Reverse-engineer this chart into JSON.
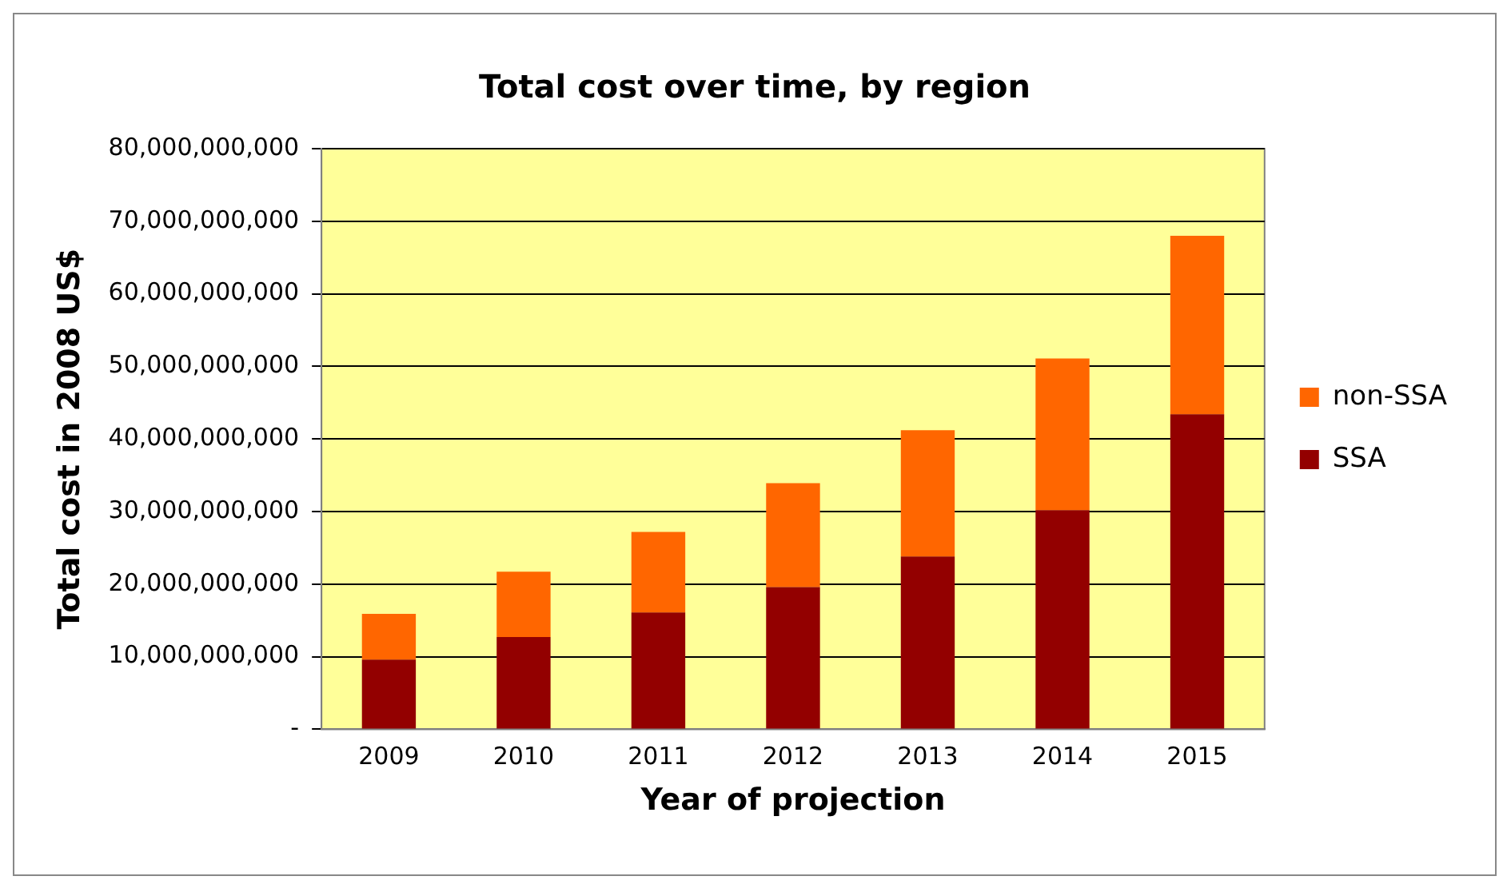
{
  "chart_data": {
    "type": "bar",
    "title": "Total cost over time, by region",
    "xlabel": "Year of projection",
    "ylabel": "Total cost in 2008 US$",
    "categories": [
      "2009",
      "2010",
      "2011",
      "2012",
      "2013",
      "2014",
      "2015"
    ],
    "stacked": true,
    "legend": "right",
    "grid": "y",
    "series": [
      {
        "name": "SSA",
        "color": "#930000",
        "values": [
          9600000000,
          12700000000,
          16100000000,
          19600000000,
          23800000000,
          30200000000,
          43400000000
        ]
      },
      {
        "name": "non-SSA",
        "color": "#ff6600",
        "values": [
          6300000000,
          9000000000,
          11100000000,
          14300000000,
          17400000000,
          20900000000,
          24600000000
        ]
      }
    ],
    "ylim": [
      0,
      80000000000
    ],
    "yticks": [
      {
        "value": 0,
        "label": "-"
      },
      {
        "value": 10000000000,
        "label": "10,000,000,000"
      },
      {
        "value": 20000000000,
        "label": "20,000,000,000"
      },
      {
        "value": 30000000000,
        "label": "30,000,000,000"
      },
      {
        "value": 40000000000,
        "label": "40,000,000,000"
      },
      {
        "value": 50000000000,
        "label": "50,000,000,000"
      },
      {
        "value": 60000000000,
        "label": "60,000,000,000"
      },
      {
        "value": 70000000000,
        "label": "70,000,000,000"
      },
      {
        "value": 80000000000,
        "label": "80,000,000,000"
      }
    ]
  }
}
